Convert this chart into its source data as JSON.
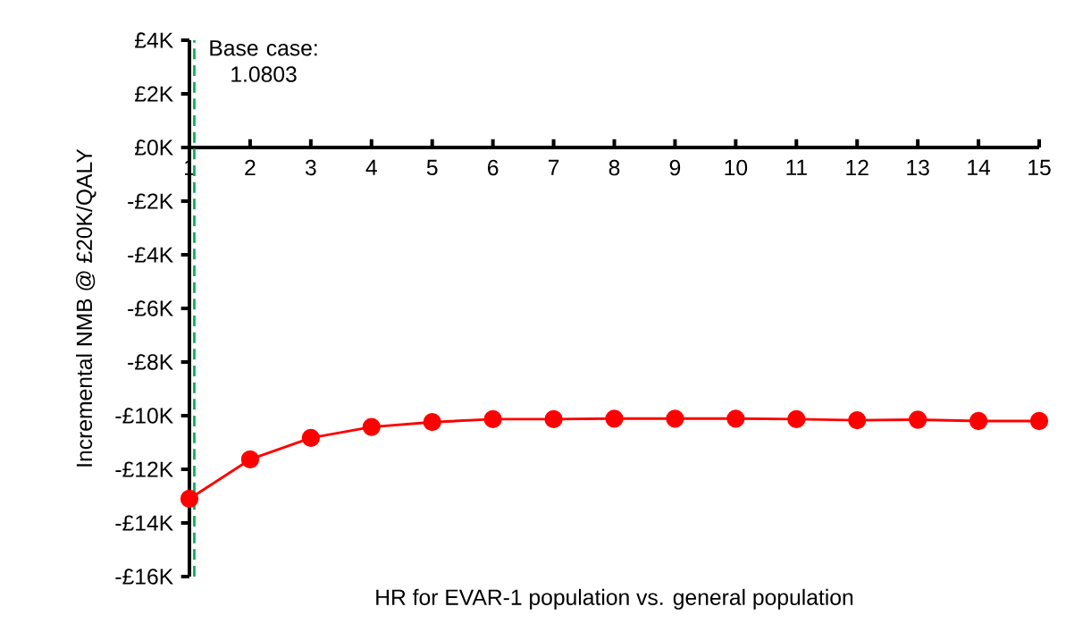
{
  "chart_data": {
    "type": "line",
    "xlabel": "HR for EVAR-1 population vs. general population",
    "ylabel": "Incremental NMB @ £20K/QALY",
    "x": [
      1,
      2,
      3,
      4,
      5,
      6,
      7,
      8,
      9,
      10,
      11,
      12,
      13,
      14,
      15
    ],
    "series": [
      {
        "color": "#ff0000",
        "values": [
          -13.1,
          -11.63,
          -10.83,
          -10.42,
          -10.24,
          -10.13,
          -10.13,
          -10.11,
          -10.11,
          -10.11,
          -10.13,
          -10.17,
          -10.15,
          -10.2,
          -10.2
        ]
      }
    ],
    "marker": "circle",
    "xlim": [
      1,
      15
    ],
    "xticks": [
      1,
      2,
      3,
      4,
      5,
      6,
      7,
      8,
      9,
      10,
      11,
      12,
      13,
      14,
      15
    ],
    "ylim": [
      -16,
      4
    ],
    "yticks": [
      {
        "value": -16,
        "label": "-£16K"
      },
      {
        "value": -14,
        "label": "-£14K"
      },
      {
        "value": -12,
        "label": "-£12K"
      },
      {
        "value": -10,
        "label": "-£10K"
      },
      {
        "value": -8,
        "label": "-£8K"
      },
      {
        "value": -6,
        "label": "-£6K"
      },
      {
        "value": -4,
        "label": "-£4K"
      },
      {
        "value": -2,
        "label": "-£2K"
      },
      {
        "value": 0,
        "label": "£0K"
      },
      {
        "value": 2,
        "label": "£2K"
      },
      {
        "value": 4,
        "label": "£4K"
      }
    ],
    "ref_lines": [
      {
        "axis": "x",
        "value": 1.0803,
        "label": "Base case: 1.0803",
        "color": "#00b050",
        "line_style": "dashed"
      }
    ],
    "grid": false
  }
}
